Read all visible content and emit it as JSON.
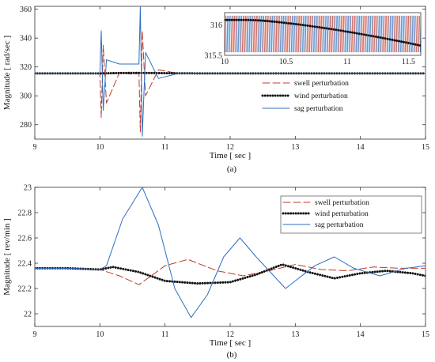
{
  "chart_data": [
    {
      "type": "line",
      "panel_label": "(a)",
      "xlabel": "Time  [ sec ]",
      "ylabel": "Magnitude  [ rad/sec ]",
      "xlim": [
        9,
        15
      ],
      "ylim": [
        270,
        362
      ],
      "xticks": [
        9,
        10,
        11,
        12,
        13,
        14,
        15
      ],
      "yticks": [
        280,
        300,
        320,
        340,
        360
      ],
      "grid": false,
      "legend_position": "right",
      "series": [
        {
          "name": "swell perturbation",
          "color": "#c0392b",
          "style": "dashed",
          "x": [
            9,
            10.0,
            10.02,
            10.05,
            10.1,
            10.3,
            10.5,
            10.6,
            10.62,
            10.65,
            10.7,
            10.9,
            11.2,
            11.6,
            15
          ],
          "y": [
            315.5,
            315.5,
            285,
            335,
            295,
            316,
            315,
            315.5,
            275,
            345,
            300,
            318,
            315.5,
            315.5,
            315.5
          ]
        },
        {
          "name": "wind perturbation",
          "color": "#111111",
          "style": "dotted",
          "x": [
            9,
            10.0,
            10.3,
            10.6,
            10.9,
            11.2,
            11.6,
            12,
            15
          ],
          "y": [
            315.5,
            315.5,
            315.8,
            315.9,
            315.7,
            315.6,
            315.5,
            315.5,
            315.5
          ]
        },
        {
          "name": "sag perturbation",
          "color": "#2f6fc0",
          "style": "solid",
          "x": [
            9,
            10.0,
            10.02,
            10.05,
            10.1,
            10.3,
            10.6,
            10.62,
            10.65,
            10.7,
            10.9,
            11.2,
            11.6,
            15
          ],
          "y": [
            315.5,
            315.5,
            345,
            290,
            325,
            322,
            322,
            362,
            272,
            330,
            312,
            315.5,
            315.5,
            315.5
          ]
        }
      ],
      "inset": {
        "xlim": [
          10,
          11.6
        ],
        "ylim": [
          315.5,
          316.2
        ],
        "xticks": [
          10,
          10.5,
          11,
          11.5
        ],
        "yticks": [
          315.5,
          316
        ]
      }
    },
    {
      "type": "line",
      "panel_label": "(b)",
      "xlabel": "Time  [ sec ]",
      "ylabel": "Magnitude  [ rev/min ]",
      "xlim": [
        9,
        15
      ],
      "ylim": [
        21.9,
        23
      ],
      "xticks": [
        9,
        10,
        11,
        12,
        13,
        14,
        15
      ],
      "yticks": [
        22,
        22.2,
        22.4,
        22.6,
        22.8,
        23
      ],
      "grid": false,
      "legend_position": "top-right",
      "series": [
        {
          "name": "swell perturbation",
          "color": "#c0392b",
          "style": "dashed",
          "x": [
            9,
            9.5,
            10.0,
            10.3,
            10.6,
            11.0,
            11.35,
            11.8,
            12.2,
            12.6,
            13.0,
            13.4,
            13.8,
            14.2,
            14.6,
            15
          ],
          "y": [
            22.36,
            22.36,
            22.35,
            22.3,
            22.23,
            22.38,
            22.43,
            22.34,
            22.3,
            22.34,
            22.39,
            22.35,
            22.34,
            22.37,
            22.36,
            22.36
          ]
        },
        {
          "name": "wind perturbation",
          "color": "#111111",
          "style": "dotted",
          "x": [
            9,
            9.5,
            10.0,
            10.2,
            10.6,
            11.0,
            11.5,
            12.0,
            12.4,
            12.8,
            13.2,
            13.6,
            14.0,
            14.4,
            14.8,
            15
          ],
          "y": [
            22.36,
            22.36,
            22.35,
            22.37,
            22.33,
            22.26,
            22.24,
            22.25,
            22.31,
            22.39,
            22.33,
            22.28,
            22.32,
            22.34,
            22.32,
            22.3
          ]
        },
        {
          "name": "sag perturbation",
          "color": "#2f6fc0",
          "style": "solid",
          "x": [
            9,
            9.5,
            10.0,
            10.1,
            10.35,
            10.65,
            10.9,
            11.15,
            11.4,
            11.65,
            11.9,
            12.15,
            12.4,
            12.85,
            13.3,
            13.6,
            13.9,
            14.3,
            14.7,
            15
          ],
          "y": [
            22.36,
            22.36,
            22.35,
            22.38,
            22.75,
            23.0,
            22.7,
            22.2,
            21.97,
            22.15,
            22.45,
            22.6,
            22.45,
            22.2,
            22.38,
            22.45,
            22.36,
            22.3,
            22.36,
            22.38
          ]
        }
      ]
    }
  ]
}
